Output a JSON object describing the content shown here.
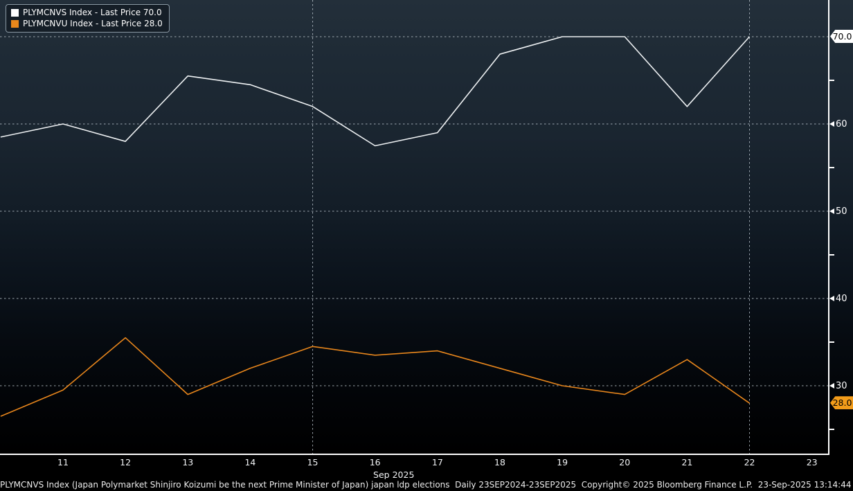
{
  "legend": {
    "items": [
      {
        "label": "PLYMCNVS Index - Last Price 70.0",
        "color": "#ffffff"
      },
      {
        "label": "PLYMCNVU Index - Last Price 28.0",
        "color": "#e8871c"
      }
    ]
  },
  "chart_data": {
    "type": "line",
    "title": "",
    "x": {
      "axis_label": "Sep 2025",
      "first_day": 11,
      "tick_labels": [
        "11",
        "12",
        "13",
        "14",
        "15",
        "16",
        "17",
        "18",
        "19",
        "20",
        "21",
        "22",
        "23"
      ],
      "gridline_days": [
        15,
        22
      ]
    },
    "y": {
      "gridline_values": [
        70,
        60,
        50,
        40,
        30
      ],
      "axis_labels": [
        60,
        50,
        40,
        30
      ],
      "minor_ticks": [
        65,
        55,
        45,
        35,
        25
      ],
      "range": [
        22,
        74
      ],
      "grid_style": "dotted"
    },
    "series": [
      {
        "name": "PLYMCNVS Index",
        "color": "#eef1f3",
        "last_price": "70.0",
        "tag_bg": "#ffffff",
        "days": [
          10,
          11,
          12,
          13,
          14,
          15,
          16,
          17,
          18,
          19,
          20,
          21,
          22
        ],
        "values": [
          58.5,
          60,
          58,
          65.5,
          64.5,
          62,
          57.5,
          59,
          68,
          70,
          70,
          62,
          70
        ]
      },
      {
        "name": "PLYMCNVU Index",
        "color": "#e8861c",
        "last_price": "28.0",
        "tag_bg": "#f29c1a",
        "days": [
          10,
          11,
          12,
          13,
          14,
          15,
          16,
          17,
          18,
          19,
          20,
          21,
          22
        ],
        "values": [
          26.5,
          29.5,
          35.5,
          29,
          32,
          34.5,
          33.5,
          34,
          32,
          30,
          29,
          33,
          28
        ]
      }
    ],
    "legend_position": "top-left"
  },
  "footer": {
    "text": "PLYMCNVS Index (Japan Polymarket Shinjiro Koizumi be the next Prime Minister of Japan) japan ldp elections  Daily 23SEP2024-23SEP2025  Copyright© 2025 Bloomberg Finance L.P.  23-Sep-2025 13:14:44"
  }
}
